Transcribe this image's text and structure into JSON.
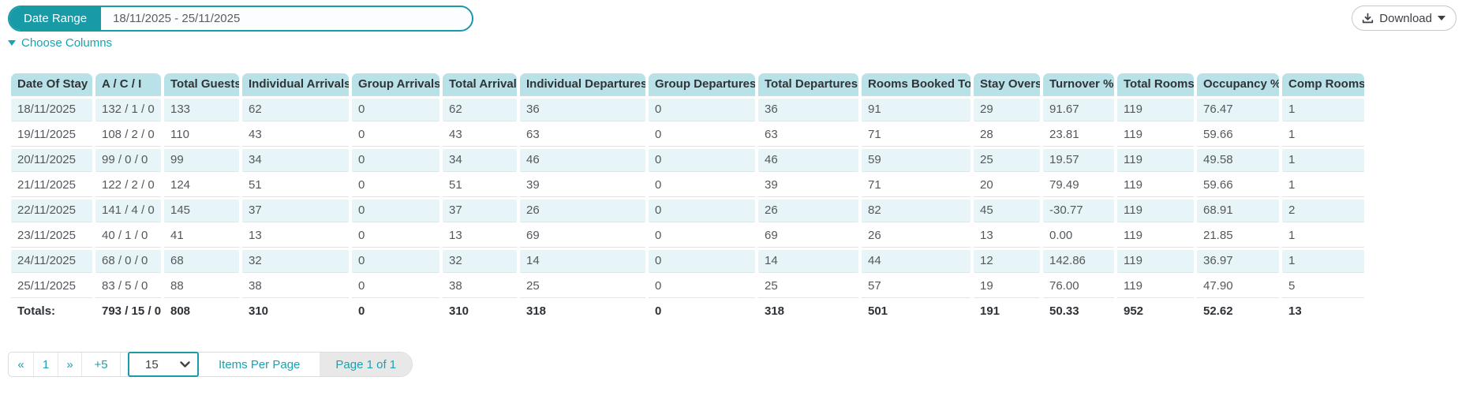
{
  "colors": {
    "accent": "#189aa7",
    "header_bg": "#b9e2e8",
    "stripe_bg": "#e8f5f8"
  },
  "filters": {
    "date_range_label": "Date Range",
    "date_range_value": "18/11/2025 - 25/11/2025"
  },
  "toolbar": {
    "download_label": "Download",
    "choose_columns_label": "Choose Columns"
  },
  "table": {
    "sort_column_index": 0,
    "sort_direction": "asc",
    "columns": [
      "Date Of Stay",
      "A / C / I",
      "Total Guests",
      "Individual Arrivals",
      "Group Arrivals",
      "Total Arrivals",
      "Individual Departures",
      "Group Departures",
      "Total Departures",
      "Rooms Booked Today",
      "Stay Overs",
      "Turnover %",
      "Total Rooms",
      "Occupancy %",
      "Comp Rooms"
    ],
    "rows": [
      [
        "18/11/2025",
        "132 / 1 / 0",
        "133",
        "62",
        "0",
        "62",
        "36",
        "0",
        "36",
        "91",
        "29",
        "91.67",
        "119",
        "76.47",
        "1"
      ],
      [
        "19/11/2025",
        "108 / 2 / 0",
        "110",
        "43",
        "0",
        "43",
        "63",
        "0",
        "63",
        "71",
        "28",
        "23.81",
        "119",
        "59.66",
        "1"
      ],
      [
        "20/11/2025",
        "99 / 0 / 0",
        "99",
        "34",
        "0",
        "34",
        "46",
        "0",
        "46",
        "59",
        "25",
        "19.57",
        "119",
        "49.58",
        "1"
      ],
      [
        "21/11/2025",
        "122 / 2 / 0",
        "124",
        "51",
        "0",
        "51",
        "39",
        "0",
        "39",
        "71",
        "20",
        "79.49",
        "119",
        "59.66",
        "1"
      ],
      [
        "22/11/2025",
        "141 / 4 / 0",
        "145",
        "37",
        "0",
        "37",
        "26",
        "0",
        "26",
        "82",
        "45",
        "-30.77",
        "119",
        "68.91",
        "2"
      ],
      [
        "23/11/2025",
        "40 / 1 / 0",
        "41",
        "13",
        "0",
        "13",
        "69",
        "0",
        "69",
        "26",
        "13",
        "0.00",
        "119",
        "21.85",
        "1"
      ],
      [
        "24/11/2025",
        "68 / 0 / 0",
        "68",
        "32",
        "0",
        "32",
        "14",
        "0",
        "14",
        "44",
        "12",
        "142.86",
        "119",
        "36.97",
        "1"
      ],
      [
        "25/11/2025",
        "83 / 5 / 0",
        "88",
        "38",
        "0",
        "38",
        "25",
        "0",
        "25",
        "57",
        "19",
        "76.00",
        "119",
        "47.90",
        "5"
      ]
    ],
    "totals": [
      "Totals:",
      "793 / 15 / 0",
      "808",
      "310",
      "0",
      "310",
      "318",
      "0",
      "318",
      "501",
      "191",
      "50.33",
      "952",
      "52.62",
      "13"
    ]
  },
  "pagination": {
    "first_label": "«",
    "page_number": "1",
    "next_label": "»",
    "jump_label": "+5",
    "items_per_page_value": "15",
    "items_per_page_label": "Items Per Page",
    "page_status": "Page 1 of 1"
  }
}
